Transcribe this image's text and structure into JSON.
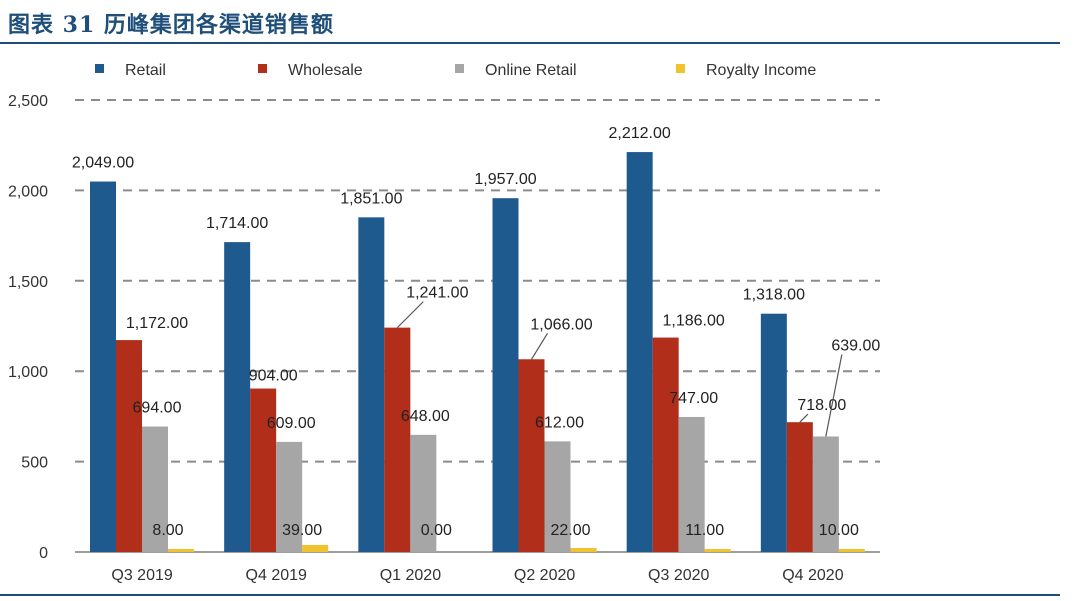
{
  "header": {
    "title": "图表 31   历峰集团各渠道销售额"
  },
  "chart_data": {
    "type": "bar",
    "categories": [
      "Q3 2019",
      "Q4 2019",
      "Q1 2020",
      "Q2 2020",
      "Q3 2020",
      "Q4 2020"
    ],
    "series": [
      {
        "name": "Retail",
        "color": "#1f5a8f",
        "values": [
          2049,
          1714,
          1851,
          1957,
          2212,
          1318
        ],
        "labels": [
          "2,049.00",
          "1,714.00",
          "1,851.00",
          "1,957.00",
          "2,212.00",
          "1,318.00"
        ]
      },
      {
        "name": "Wholesale",
        "color": "#b02e1a",
        "values": [
          1172,
          904,
          1241,
          1066,
          1186,
          718
        ],
        "labels": [
          "1,172.00",
          "904.00",
          "1,241.00",
          "1,066.00",
          "1,186.00",
          "718.00"
        ]
      },
      {
        "name": "Online Retail",
        "color": "#a6a6a6",
        "values": [
          694,
          609,
          648,
          612,
          747,
          639
        ],
        "labels": [
          "694.00",
          "609.00",
          "648.00",
          "612.00",
          "747.00",
          "639.00"
        ]
      },
      {
        "name": "Royalty Income",
        "color": "#f2c12e",
        "values": [
          8,
          39,
          0,
          22,
          11,
          10
        ],
        "labels": [
          "8.00",
          "39.00",
          "0.00",
          "22.00",
          "11.00",
          "10.00"
        ]
      }
    ],
    "ylim": [
      0,
      2500
    ],
    "yticks": [
      0,
      500,
      1000,
      1500,
      2000,
      2500
    ],
    "ytick_labels": [
      "0",
      "500",
      "1,000",
      "1,500",
      "2,000",
      "2,500"
    ],
    "grid": "dashed horizontal",
    "legend": "top"
  }
}
